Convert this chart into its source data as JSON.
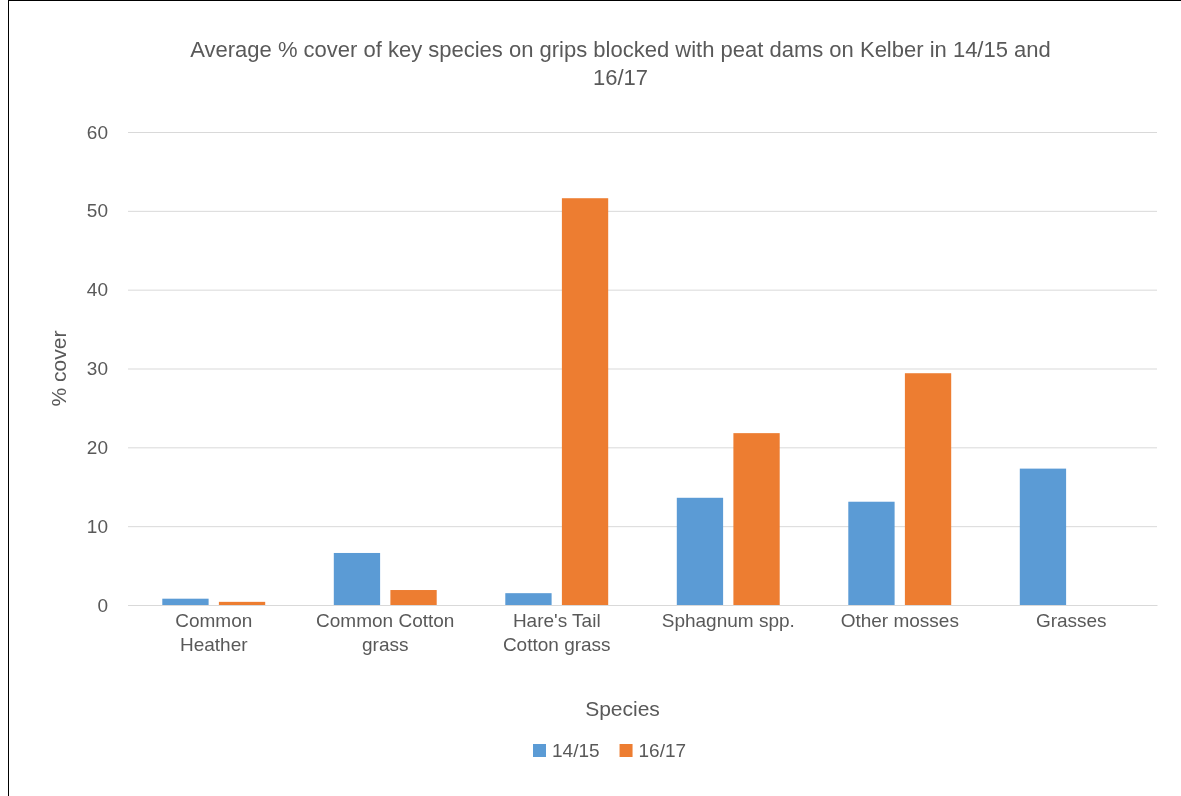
{
  "chart_data": {
    "type": "bar",
    "title": "Average % cover of key species on grips blocked with peat dams on Kelber in 14/15 and 16/17",
    "xlabel": "Species",
    "ylabel": "% cover",
    "categories": [
      "Common Heather",
      "Common Cotton grass",
      "Hare's Tail Cotton grass",
      "Sphagnum spp.",
      "Other mosses",
      "Grasses"
    ],
    "series": [
      {
        "name": "14/15",
        "color": "#5b9bd5",
        "values": [
          0.8,
          6.6,
          1.5,
          13.6,
          13.1,
          17.3
        ]
      },
      {
        "name": "16/17",
        "color": "#ed7d31",
        "values": [
          0.4,
          1.9,
          51.6,
          21.8,
          29.4,
          null
        ]
      }
    ],
    "ylim": [
      0,
      60
    ],
    "yticks": [
      0,
      10,
      20,
      30,
      40,
      50,
      60
    ],
    "grid": "y",
    "legend": "bottom"
  }
}
